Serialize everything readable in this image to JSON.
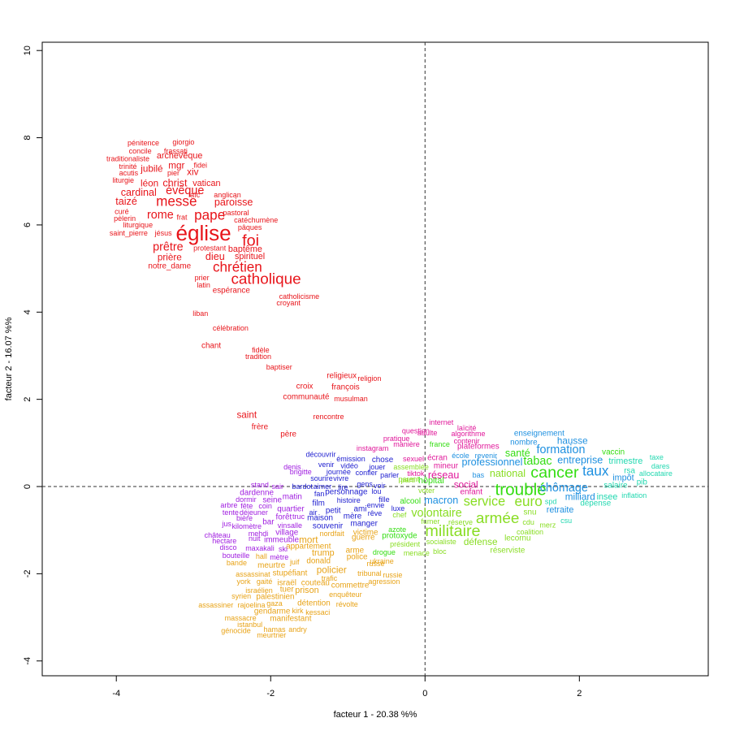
{
  "chart_data": {
    "type": "scatter",
    "xlabel": "facteur  1  - 20.38 %%",
    "ylabel": "facteur  2  - 16.07 %%",
    "xlim": [
      -4.96,
      3.67
    ],
    "xticks": [
      -4,
      -2,
      0,
      2
    ],
    "ylim": [
      -4.34,
      10.19
    ],
    "yticks": [
      -4,
      -2,
      0,
      2,
      4,
      6,
      8,
      10
    ],
    "hline": 0,
    "vline": 0,
    "series": [
      {
        "color": "#e8141a",
        "labels": [
          "pénitence",
          "giorgio",
          "concile",
          "frassati",
          "traditionaliste",
          "archevêque",
          "trinité",
          "mgr",
          "fidei",
          "acutis",
          "jubilé",
          "pier",
          "xiv",
          "liturgie",
          "léon",
          "christ",
          "vatican",
          "cardinal",
          "évêque",
          "laïc",
          "anglican",
          "taizé",
          "messe",
          "paroisse",
          "pastoral",
          "curé",
          "rome",
          "frat",
          "pape",
          "pèlerin",
          "catéchumène",
          "liturgique",
          "pâques",
          "saint_pierre",
          "jésus",
          "église",
          "foi",
          "prêtre",
          "protestant",
          "baptême",
          "prière",
          "dieu",
          "spirituel",
          "notre_dame",
          "chrétien",
          "catholique",
          "prier",
          "latin",
          "espérance",
          "catholicisme",
          "croyant",
          "liban",
          "célébration",
          "chant",
          "fidèle",
          "tradition",
          "baptiser",
          "religieux",
          "religion",
          "croix",
          "françois",
          "communauté",
          "musulman",
          "saint",
          "rencontre",
          "frère",
          "père"
        ],
        "x": [
          -3.65,
          -3.13,
          -3.69,
          -3.23,
          -3.85,
          -3.18,
          -3.85,
          -3.22,
          -2.91,
          -3.84,
          -3.54,
          -3.26,
          -3.01,
          -3.91,
          -3.57,
          -3.24,
          -2.83,
          -3.71,
          -3.11,
          -2.99,
          -2.56,
          -3.87,
          -3.22,
          -2.48,
          -2.45,
          -3.93,
          -3.43,
          -3.15,
          -2.79,
          -3.89,
          -2.19,
          -3.72,
          -2.27,
          -3.84,
          -3.39,
          -2.87,
          -2.26,
          -3.33,
          -2.79,
          -2.33,
          -3.31,
          -2.72,
          -2.27,
          -3.31,
          -2.43,
          -2.06,
          -2.89,
          -2.87,
          -2.51,
          -1.63,
          -1.77,
          -2.91,
          -2.52,
          -2.77,
          -2.13,
          -2.16,
          -1.89,
          -1.08,
          -0.72,
          -1.56,
          -1.03,
          -1.54,
          -0.96,
          -2.31,
          -1.25,
          -2.14,
          -1.77
        ],
        "y": [
          7.88,
          7.9,
          7.69,
          7.69,
          7.52,
          7.58,
          7.34,
          7.36,
          7.37,
          7.19,
          7.28,
          7.19,
          7.21,
          7.02,
          6.95,
          6.96,
          6.95,
          6.74,
          6.78,
          6.69,
          6.69,
          6.54,
          6.54,
          6.52,
          6.28,
          6.31,
          6.22,
          6.18,
          6.22,
          6.15,
          6.11,
          6.0,
          5.94,
          5.81,
          5.81,
          5.81,
          5.64,
          5.49,
          5.47,
          5.44,
          5.25,
          5.27,
          5.27,
          5.05,
          5.03,
          4.75,
          4.79,
          4.62,
          4.49,
          4.36,
          4.21,
          3.97,
          3.63,
          3.22,
          3.13,
          2.98,
          2.74,
          2.53,
          2.48,
          2.29,
          2.27,
          2.05,
          2.01,
          1.64,
          1.6,
          1.36,
          1.19
        ],
        "cex": [
          1,
          1,
          1,
          1,
          1,
          1.2,
          1,
          1.3,
          1,
          1,
          1.3,
          1,
          1.3,
          1,
          1.3,
          1.4,
          1.2,
          1.4,
          1.6,
          1,
          1,
          1.4,
          1.9,
          1.4,
          1,
          1,
          1.6,
          1,
          1.9,
          1,
          1,
          1,
          1,
          1,
          1,
          2.9,
          2.2,
          1.6,
          1,
          1.2,
          1.3,
          1.4,
          1.2,
          1.1,
          1.9,
          2.1,
          1,
          1,
          1.1,
          1,
          1,
          1,
          1,
          1.1,
          1,
          1,
          1,
          1.1,
          1,
          1.1,
          1.1,
          1.1,
          1,
          1.3,
          1,
          1.1,
          1.1
        ]
      },
      {
        "color": "#e8a317",
        "labels": [
          "meurtre",
          "stupéfiant",
          "assassinat",
          "york",
          "gaité",
          "israël",
          "couteau",
          "policier",
          "donald",
          "juif",
          "mort",
          "appartement",
          "trump",
          "police",
          "arme",
          "tribunal",
          "russie",
          "trafic",
          "commettre",
          "agression",
          "syrien",
          "israélien",
          "tuer",
          "prison",
          "palestinien",
          "enquêteur",
          "assassiner",
          "rajoelina",
          "gaza",
          "détention",
          "révolte",
          "gendarme",
          "kirk",
          "kessaci",
          "massacre",
          "manifestant",
          "istanbul",
          "hamas",
          "andry",
          "génocide",
          "meurtrier",
          "bande",
          "hall",
          "ukraine",
          "guerre",
          "victime",
          "nord",
          "fait",
          "russe"
        ],
        "x": [
          -1.99,
          -1.75,
          -2.23,
          -2.35,
          -2.08,
          -1.79,
          -1.42,
          -1.21,
          -1.38,
          -1.69,
          -1.51,
          -1.51,
          -1.32,
          -0.88,
          -0.91,
          -0.72,
          -0.42,
          -1.24,
          -0.97,
          -0.53,
          -2.38,
          -2.15,
          -1.79,
          -1.53,
          -1.94,
          -1.03,
          -2.71,
          -2.25,
          -1.95,
          -1.44,
          -1.01,
          -1.98,
          -1.65,
          -1.39,
          -2.39,
          -1.74,
          -2.27,
          -1.95,
          -1.65,
          -2.45,
          -1.99,
          -2.44,
          -2.12,
          -0.56,
          -0.8,
          -0.77,
          -1.27,
          -1.11,
          -0.64
        ],
        "y": [
          -1.82,
          -1.99,
          -2.01,
          -2.18,
          -2.18,
          -2.22,
          -2.22,
          -1.92,
          -1.71,
          -1.73,
          -1.23,
          -1.38,
          -1.53,
          -1.62,
          -1.47,
          -1.99,
          -2.03,
          -2.1,
          -2.27,
          -2.18,
          -2.51,
          -2.38,
          -2.37,
          -2.38,
          -2.53,
          -2.48,
          -2.72,
          -2.72,
          -2.68,
          -2.68,
          -2.7,
          -2.87,
          -2.85,
          -2.89,
          -3.02,
          -3.04,
          -3.17,
          -3.28,
          -3.28,
          -3.31,
          -3.41,
          -1.75,
          -1.6,
          -1.71,
          -1.17,
          -1.06,
          -1.08,
          -1.08,
          -1.77
        ],
        "cex": [
          1.1,
          1.1,
          1,
          1,
          1,
          1.1,
          1.1,
          1.3,
          1.1,
          1,
          1.3,
          1.1,
          1.2,
          1.1,
          1.1,
          1,
          1,
          1,
          1.1,
          1,
          1,
          1,
          1.1,
          1.2,
          1.1,
          1,
          1,
          1,
          1,
          1.1,
          1,
          1.1,
          1,
          1,
          1,
          1.1,
          1,
          1,
          1,
          1,
          1,
          1,
          1,
          1,
          1.1,
          1.1,
          1,
          1,
          1
        ]
      },
      {
        "color": "#a01ee0",
        "labels": [
          "denis",
          "brigitte",
          "stand",
          "sair",
          "dardenne",
          "dormir",
          "seine",
          "matin",
          "quartier",
          "arbre",
          "fête",
          "coin",
          "tente",
          "déjeuner",
          "forêt",
          "truc",
          "jus",
          "bière",
          "kilomètre",
          "bar",
          "vin",
          "salle",
          "château",
          "mehdi",
          "village",
          "hectare",
          "nuit",
          "immeuble",
          "disco",
          "maxakali",
          "ski",
          "bouteille",
          "mètre"
        ],
        "x": [
          -1.72,
          -1.61,
          -2.14,
          -1.91,
          -2.18,
          -2.32,
          -1.98,
          -1.72,
          -1.74,
          -2.54,
          -2.31,
          -2.07,
          -2.52,
          -2.22,
          -1.83,
          -1.64,
          -2.57,
          -2.34,
          -2.31,
          -2.03,
          -1.85,
          -1.69,
          -2.69,
          -2.16,
          -1.79,
          -2.6,
          -2.21,
          -1.86,
          -2.55,
          -2.14,
          -1.84,
          -2.45,
          -1.89
        ],
        "y": [
          0.45,
          0.34,
          0.04,
          0.0,
          -0.15,
          -0.3,
          -0.32,
          -0.24,
          -0.52,
          -0.43,
          -0.45,
          -0.45,
          -0.6,
          -0.6,
          -0.71,
          -0.69,
          -0.86,
          -0.73,
          -0.91,
          -0.82,
          -0.89,
          -0.89,
          -1.12,
          -1.08,
          -1.06,
          -1.25,
          -1.19,
          -1.23,
          -1.4,
          -1.42,
          -1.43,
          -1.58,
          -1.62
        ],
        "cex": [
          1,
          1,
          1,
          1,
          1.1,
          1,
          1.1,
          1.1,
          1.1,
          1,
          1,
          1,
          1,
          1,
          1.1,
          1,
          1,
          1,
          1,
          1.1,
          1,
          1,
          1,
          1,
          1.1,
          1,
          1,
          1.1,
          1,
          1,
          1,
          1,
          1
        ]
      },
      {
        "color": "#2020d0",
        "labels": [
          "découvrir",
          "émission",
          "venir",
          "vidéo",
          "chose",
          "sourire",
          "journée",
          "jouer",
          "vivre",
          "confier",
          "parler",
          "bardot",
          "aimer",
          "fan",
          "personnage",
          "lire",
          "voir",
          "lou",
          "film",
          "histoire",
          "fille",
          "petit",
          "ami",
          "envie",
          "air",
          "maison",
          "mère",
          "souvenir",
          "manger",
          "rêve",
          "luxe",
          "gens"
        ],
        "x": [
          -1.35,
          -0.96,
          -1.28,
          -0.98,
          -0.55,
          -1.34,
          -1.12,
          -0.62,
          -1.09,
          -0.76,
          -0.46,
          -1.59,
          -1.33,
          -1.37,
          -1.02,
          -1.06,
          -0.59,
          -0.63,
          -1.38,
          -0.99,
          -0.53,
          -1.19,
          -0.84,
          -0.64,
          -1.45,
          -1.36,
          -0.94,
          -1.26,
          -0.79,
          -0.65,
          -0.35,
          -0.78
        ],
        "y": [
          0.74,
          0.63,
          0.5,
          0.48,
          0.61,
          0.19,
          0.34,
          0.45,
          0.19,
          0.32,
          0.26,
          0.0,
          0.0,
          -0.17,
          -0.13,
          -0.02,
          0.02,
          -0.11,
          -0.39,
          -0.32,
          -0.3,
          -0.56,
          -0.52,
          -0.43,
          -0.6,
          -0.73,
          -0.69,
          -0.91,
          -0.86,
          -0.61,
          -0.5,
          0.06
        ],
        "cex": [
          1,
          1,
          1,
          1,
          1.1,
          1,
          1,
          1,
          1,
          1,
          1,
          1,
          1,
          1,
          1.1,
          1,
          1,
          1,
          1.1,
          1,
          1,
          1.1,
          1.1,
          1,
          1,
          1.1,
          1.1,
          1.1,
          1.1,
          1,
          1,
          1
        ]
      },
      {
        "color": "#e0189a",
        "labels": [
          "instagram",
          "internet",
          "laïcité",
          "question",
          "adulte",
          "algorithme",
          "pratique",
          "contenir",
          "manière",
          "plateformes",
          "sexuel",
          "écran",
          "tiktok",
          "mineur",
          "réseau",
          "social",
          "enfant"
        ],
        "x": [
          -0.68,
          0.21,
          0.54,
          -0.12,
          0.03,
          0.56,
          -0.37,
          0.54,
          -0.24,
          0.69,
          -0.15,
          0.16,
          -0.12,
          0.27,
          0.24,
          0.53,
          0.6
        ],
        "y": [
          0.88,
          1.47,
          1.34,
          1.28,
          1.23,
          1.21,
          1.1,
          1.04,
          0.97,
          0.91,
          0.63,
          0.65,
          0.3,
          0.47,
          0.26,
          0.04,
          -0.13
        ],
        "cex": [
          1,
          1,
          1,
          1,
          1,
          1,
          1,
          1,
          1,
          1.1,
          1,
          1.1,
          1,
          1.1,
          1.4,
          1.3,
          1.1
        ]
      },
      {
        "color": "#33dd11",
        "labels": [
          "santé",
          "vaccin",
          "tabac",
          "cancer",
          "troublé",
          "hôpital",
          "alcool",
          "protoxyde",
          "azote",
          "drogue",
          "france"
        ],
        "x": [
          1.2,
          2.44,
          1.46,
          1.68,
          1.24,
          0.08,
          -0.19,
          -0.33,
          -0.36,
          -0.53,
          0.19
        ],
        "y": [
          0.76,
          0.78,
          0.58,
          0.32,
          -0.07,
          0.13,
          -0.34,
          -1.14,
          -0.99,
          -1.51,
          0.97
        ],
        "cex": [
          1.4,
          1.1,
          1.6,
          2.2,
          2.3,
          1.2,
          1.1,
          1.1,
          1,
          1,
          1
        ]
      },
      {
        "color": "#88dd22",
        "labels": [
          "militaire",
          "armée",
          "volontaire",
          "service",
          "euro",
          "national",
          "défense",
          "réserviste",
          "lecornu",
          "snu",
          "fumer",
          "réserve",
          "coalition",
          "merz",
          "cdu",
          "président",
          "socialiste",
          "menace",
          "bloc",
          "voter",
          "parti",
          "chef",
          "assemblée",
          "parent"
        ],
        "x": [
          0.36,
          0.94,
          0.15,
          0.77,
          1.34,
          1.07,
          0.72,
          1.07,
          1.2,
          1.36,
          0.07,
          0.46,
          1.36,
          1.59,
          1.34,
          -0.26,
          0.21,
          -0.11,
          0.19,
          0.02,
          -0.22,
          -0.33,
          -0.18,
          -0.21
        ],
        "y": [
          -1.02,
          -0.74,
          -0.61,
          -0.34,
          -0.34,
          0.3,
          -1.28,
          -1.47,
          -1.19,
          -0.6,
          -0.8,
          -0.82,
          -1.04,
          -0.88,
          -0.82,
          -1.32,
          -1.27,
          -1.53,
          -1.49,
          -0.09,
          0.15,
          -0.65,
          0.45,
          0.17
        ],
        "cex": [
          2.2,
          2.1,
          1.6,
          1.8,
          1.9,
          1.4,
          1.3,
          1.1,
          1.1,
          1.1,
          1,
          1,
          1,
          1,
          1,
          1,
          1,
          1,
          1,
          1,
          1,
          1,
          1,
          1
        ]
      },
      {
        "color": "#1e90e0",
        "labels": [
          "enseignement",
          "professionnel",
          "nombre",
          "formation",
          "hausse",
          "taux",
          "chômage",
          "entreprise",
          "milliard",
          "retraite",
          "bas",
          "impôt",
          "école",
          "revenir",
          "macron"
        ],
        "x": [
          1.48,
          0.87,
          1.28,
          1.76,
          1.91,
          2.21,
          1.8,
          2.01,
          2.01,
          1.75,
          0.69,
          2.57,
          0.46,
          0.79,
          0.21
        ],
        "y": [
          1.21,
          0.56,
          1.01,
          0.84,
          1.04,
          0.35,
          -0.04,
          0.61,
          -0.24,
          -0.54,
          0.26,
          0.2,
          0.71,
          0.71,
          -0.32
        ],
        "cex": [
          1.1,
          1.4,
          1.1,
          1.6,
          1.3,
          1.9,
          1.6,
          1.4,
          1.3,
          1.2,
          1,
          1.2,
          1,
          1,
          1.4
        ]
      },
      {
        "color": "#22d8b0",
        "labels": [
          "trimestre",
          "taxe",
          "dares",
          "rsa",
          "allocataire",
          "pib",
          "salaire",
          "insee",
          "inflation",
          "dépense",
          "csu",
          "spd"
        ],
        "x": [
          2.6,
          3.0,
          3.05,
          2.65,
          2.99,
          2.81,
          2.47,
          2.36,
          2.71,
          2.21,
          1.83,
          1.63
        ],
        "y": [
          0.58,
          0.67,
          0.47,
          0.35,
          0.3,
          0.09,
          0.02,
          -0.24,
          -0.2,
          -0.39,
          -0.78,
          -0.34
        ],
        "cex": [
          1.2,
          1,
          1,
          1.1,
          1,
          1.1,
          1.1,
          1.2,
          1,
          1.1,
          1,
          1
        ]
      }
    ]
  }
}
